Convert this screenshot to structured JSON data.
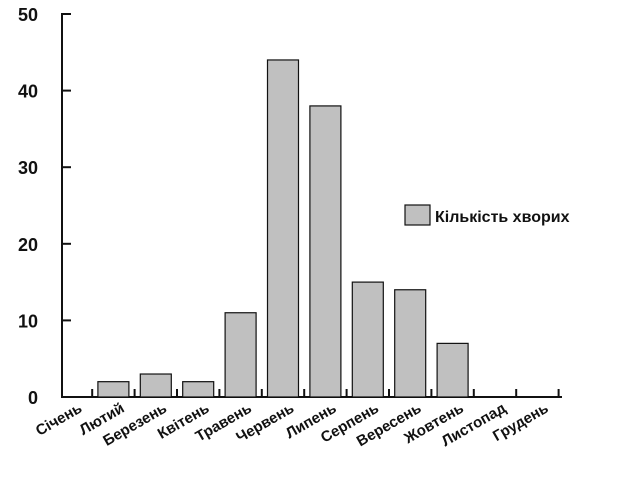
{
  "chart_data": {
    "type": "bar",
    "categories": [
      "Січень",
      "Лютий",
      "Березень",
      "Квітень",
      "Травень",
      "Червень",
      "Липень",
      "Серпень",
      "Вересень",
      "Жовтень",
      "Листопад",
      "Грудень"
    ],
    "series": [
      {
        "name": "Кількість хворих",
        "values": [
          0,
          2,
          3,
          2,
          11,
          44,
          38,
          15,
          14,
          7,
          0,
          0
        ]
      }
    ],
    "title": "",
    "xlabel": "",
    "ylabel": "",
    "ylim": [
      0,
      50
    ],
    "yticks": [
      0,
      10,
      20,
      30,
      40,
      50
    ],
    "grid": false,
    "legend": "right",
    "colors": {
      "bar_fill": "#c0c0c0",
      "bar_stroke": "#111111",
      "axis": "#111111"
    }
  }
}
